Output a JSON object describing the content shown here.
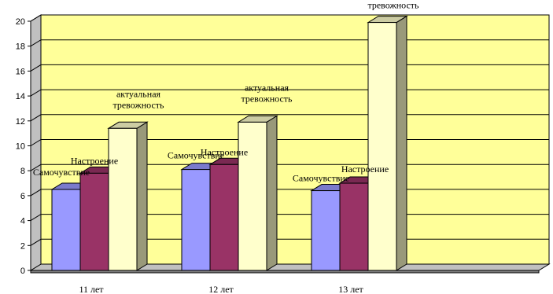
{
  "chart_data": {
    "type": "bar",
    "categories": [
      "11 лет",
      "12 лет",
      "13 лет"
    ],
    "series": [
      {
        "name": "Самочувствие",
        "values": [
          6.5,
          8.1,
          6.4
        ],
        "color": "#9999ff"
      },
      {
        "name": "Настроение",
        "values": [
          7.8,
          8.5,
          7.0
        ],
        "color": "#993366"
      },
      {
        "name": "актуальная тревожность",
        "values": [
          11.4,
          11.9,
          19.9
        ],
        "color": "#ffffcc"
      }
    ],
    "data_labels": [
      [
        "Самочувствие",
        "Настроение",
        "актуальная тревожность"
      ],
      [
        "Самочувствие",
        "Настроение",
        "актуальная тревожность"
      ],
      [
        "Самочувствие",
        "Настроение",
        "актуальная тревожность"
      ]
    ],
    "title": "",
    "xlabel": "",
    "ylabel": "",
    "ylim": [
      0,
      20
    ],
    "yticks": [
      0,
      2,
      4,
      6,
      8,
      10,
      12,
      14,
      16,
      18,
      20
    ],
    "grid": true,
    "legend": "none",
    "wall_color": "#ffff99",
    "floor_color": "#c0c0c0",
    "render": "3d"
  }
}
